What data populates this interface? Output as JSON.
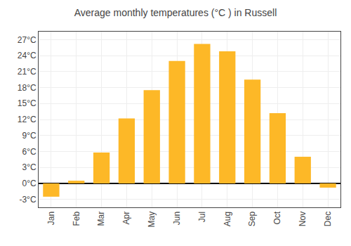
{
  "chart_data": {
    "type": "bar",
    "title": "Average monthly temperatures (°C ) in Russell",
    "categories": [
      "Jan",
      "Feb",
      "Mar",
      "Apr",
      "May",
      "Jun",
      "Jul",
      "Aug",
      "Sep",
      "Oct",
      "Nov",
      "Dec"
    ],
    "values": [
      -2.5,
      0.5,
      5.8,
      12.2,
      17.5,
      23.0,
      26.2,
      24.8,
      19.5,
      13.2,
      5.0,
      -0.8
    ],
    "color": "#FDB827",
    "ylim": [
      -4.5,
      28.5
    ],
    "yticks": [
      {
        "value": -3,
        "label": "-3°C"
      },
      {
        "value": 0,
        "label": "0°C"
      },
      {
        "value": 3,
        "label": "3°C"
      },
      {
        "value": 6,
        "label": "6°C"
      },
      {
        "value": 9,
        "label": "9°C"
      },
      {
        "value": 12,
        "label": "12°C"
      },
      {
        "value": 15,
        "label": "15°C"
      },
      {
        "value": 18,
        "label": "18°C"
      },
      {
        "value": 21,
        "label": "21°C"
      },
      {
        "value": 24,
        "label": "24°C"
      },
      {
        "value": 27,
        "label": "27°C"
      }
    ],
    "grid": true
  }
}
